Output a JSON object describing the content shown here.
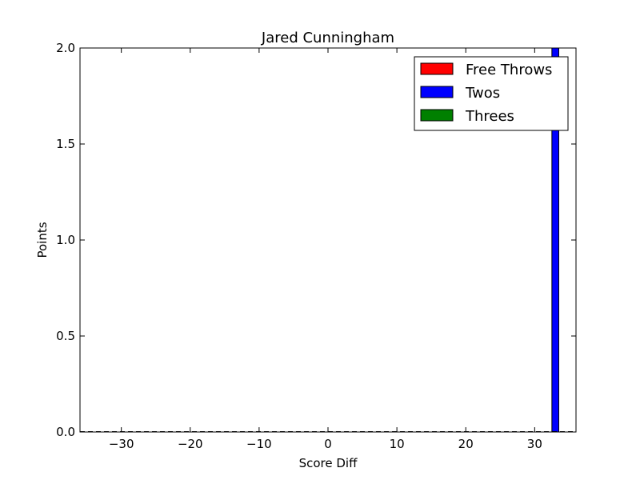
{
  "chart_data": {
    "type": "bar",
    "title": "Jared Cunningham",
    "xlabel": "Score Diff",
    "ylabel": "Points",
    "xlim": [
      -36,
      36
    ],
    "ylim": [
      0,
      2.0
    ],
    "xticks": [
      -30,
      -20,
      -10,
      0,
      10,
      20,
      30
    ],
    "yticks": [
      0.0,
      0.5,
      1.0,
      1.5,
      2.0
    ],
    "xtick_labels": [
      "−30",
      "−20",
      "−10",
      "0",
      "10",
      "20",
      "30"
    ],
    "ytick_labels": [
      "0.0",
      "0.5",
      "1.0",
      "1.5",
      "2.0"
    ],
    "grid": false,
    "legend_position": "top-right",
    "bin_width": 1,
    "stacked": true,
    "series": [
      {
        "name": "Free Throws",
        "color": "#ff0000",
        "x": [
          33
        ],
        "values": [
          0
        ]
      },
      {
        "name": "Twos",
        "color": "#0000ff",
        "x": [
          33
        ],
        "values": [
          2
        ]
      },
      {
        "name": "Threes",
        "color": "#008000",
        "x": [
          33
        ],
        "values": [
          0
        ]
      }
    ]
  }
}
